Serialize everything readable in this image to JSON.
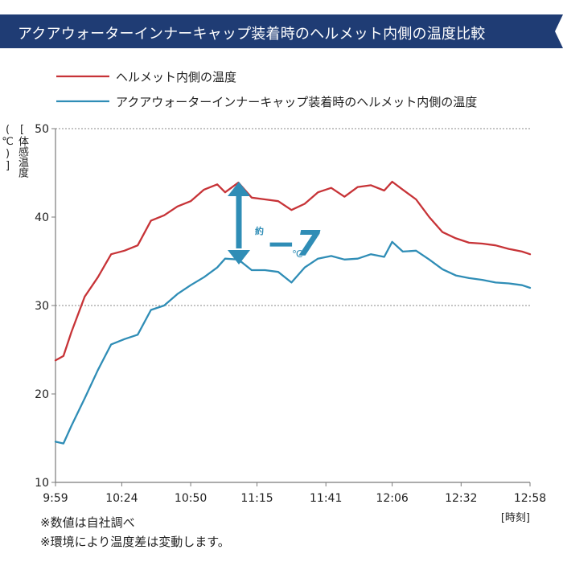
{
  "title": "アクアウォーターインナーキャップ装着時のヘルメット内側の温度比較",
  "legend": {
    "helmet_only": "ヘルメット内側の温度",
    "with_cap": "アクアウォーターインナーキャップ装着時のヘルメット内側の温度"
  },
  "annotation": {
    "prefix": "約",
    "value": "−7",
    "unit": "℃"
  },
  "notes": [
    "※数値は自社調べ",
    "※環境により温度差は変動します。"
  ],
  "colors": {
    "banner": "#1F3C74",
    "red_series": "#C73337",
    "blue_series": "#2F8DB6",
    "arrow": "#2F8DB6",
    "axis": "#7A7A7A",
    "grid": "#888888"
  },
  "chart_data": {
    "type": "line",
    "xlabel": "[時刻]",
    "ylabel": "[体感温度(℃)]",
    "ylim": [
      10,
      50
    ],
    "yticks": [
      10,
      20,
      30,
      40,
      50
    ],
    "x_ticks": [
      "9:59",
      "10:24",
      "10:50",
      "11:15",
      "11:41",
      "12:06",
      "12:32",
      "12:58"
    ],
    "x_tick_minutes": [
      599,
      624,
      650,
      675,
      701,
      726,
      752,
      778
    ],
    "grid_y": [
      30,
      50
    ],
    "legend_position": "top",
    "series": [
      {
        "name": "ヘルメット内側の温度",
        "x": [
          599,
          602,
          605,
          610,
          615,
          620,
          625,
          630,
          635,
          640,
          645,
          650,
          655,
          660,
          663,
          668,
          673,
          678,
          683,
          688,
          693,
          698,
          703,
          708,
          713,
          718,
          723,
          726,
          730,
          735,
          740,
          745,
          750,
          755,
          760,
          765,
          770,
          775,
          778
        ],
        "y": [
          23.8,
          24.3,
          27.0,
          31.0,
          33.2,
          35.8,
          36.2,
          36.8,
          39.6,
          40.2,
          41.2,
          41.8,
          43.1,
          43.7,
          42.8,
          43.9,
          42.2,
          42.0,
          41.8,
          40.8,
          41.5,
          42.8,
          43.3,
          42.3,
          43.4,
          43.6,
          43.0,
          44.0,
          43.1,
          42.0,
          40.0,
          38.3,
          37.6,
          37.1,
          37.0,
          36.8,
          36.4,
          36.1,
          35.8
        ]
      },
      {
        "name": "アクアウォーターインナーキャップ装着時のヘルメット内側の温度",
        "x": [
          599,
          602,
          605,
          610,
          615,
          620,
          625,
          630,
          635,
          640,
          645,
          650,
          655,
          660,
          663,
          668,
          673,
          678,
          683,
          688,
          693,
          698,
          703,
          708,
          713,
          718,
          723,
          726,
          730,
          735,
          740,
          745,
          750,
          755,
          760,
          765,
          770,
          775,
          778
        ],
        "y": [
          14.6,
          14.4,
          16.4,
          19.5,
          22.7,
          25.6,
          26.2,
          26.7,
          29.5,
          30.0,
          31.3,
          32.3,
          33.2,
          34.3,
          35.3,
          35.2,
          34.0,
          34.0,
          33.8,
          32.6,
          34.3,
          35.3,
          35.6,
          35.2,
          35.3,
          35.8,
          35.5,
          37.2,
          36.1,
          36.2,
          35.2,
          34.1,
          33.4,
          33.1,
          32.9,
          32.6,
          32.5,
          32.3,
          32.0
        ]
      }
    ]
  }
}
